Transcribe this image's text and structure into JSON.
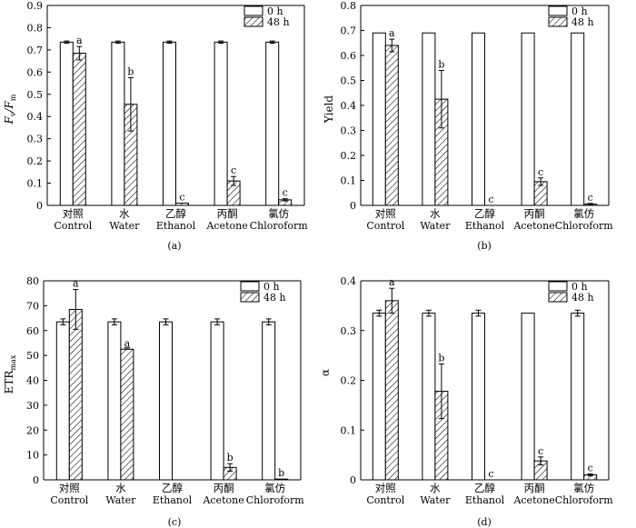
{
  "legend": {
    "series_labels": [
      "0 h",
      "48 h"
    ]
  },
  "chart_data": [
    {
      "type": "bar",
      "panel_label": "(a)",
      "ylabel": "Fv/Fm",
      "ylabel_main": "F",
      "ylabel_sub1": "v",
      "ylabel_sep": "/F",
      "ylabel_sub2": "m",
      "ylim": [
        0,
        0.9
      ],
      "yticks": [
        0,
        0.1,
        0.2,
        0.3,
        0.4,
        0.5,
        0.6,
        0.7,
        0.8,
        0.9
      ],
      "ytick_labels": [
        "0",
        "0.1",
        "0.2",
        "0.3",
        "0.4",
        "0.5",
        "0.6",
        "0.7",
        "0.8",
        "0.9"
      ],
      "categories": [
        "对照 Control",
        "水 Water",
        "乙醇 Ethanol",
        "丙酮 Acetone",
        "氯仿 Chloroform"
      ],
      "category_cn": [
        "对照",
        "水",
        "乙醇",
        "丙酮",
        "氯仿"
      ],
      "category_en": [
        "Control",
        "Water",
        "Ethanol",
        "Acetone",
        "Chloroform"
      ],
      "series": [
        {
          "name": "0 h",
          "values": [
            0.735,
            0.735,
            0.735,
            0.735,
            0.735
          ],
          "errors": [
            0.005,
            0.005,
            0.005,
            0.005,
            0.005
          ],
          "letters": [
            "",
            "",
            "",
            "",
            ""
          ]
        },
        {
          "name": "48 h",
          "values": [
            0.685,
            0.455,
            0.01,
            0.11,
            0.025
          ],
          "errors": [
            0.03,
            0.12,
            0,
            0.02,
            0.005
          ],
          "letters": [
            "a",
            "b",
            "c",
            "c",
            "c"
          ]
        }
      ]
    },
    {
      "type": "bar",
      "panel_label": "(b)",
      "ylabel": "Yield",
      "ylim": [
        0,
        0.8
      ],
      "yticks": [
        0,
        0.1,
        0.2,
        0.3,
        0.4,
        0.5,
        0.6,
        0.7,
        0.8
      ],
      "ytick_labels": [
        "0",
        "0.1",
        "0.2",
        "0.3",
        "0.4",
        "0.5",
        "0.6",
        "0.7",
        "0.8"
      ],
      "categories": [
        "对照 Control",
        "水 Water",
        "乙醇 Ethanol",
        "丙酮 Acetone",
        "氯仿 Chloroform"
      ],
      "category_cn": [
        "对照",
        "水",
        "乙醇",
        "丙酮",
        "氯仿"
      ],
      "category_en": [
        "Control",
        "Water",
        "Ethanol",
        "Acetone",
        "Chloroform"
      ],
      "series": [
        {
          "name": "0 h",
          "values": [
            0.69,
            0.69,
            0.69,
            0.69,
            0.69
          ],
          "errors": [
            0,
            0,
            0,
            0,
            0
          ],
          "letters": [
            "",
            "",
            "",
            "",
            ""
          ]
        },
        {
          "name": "48 h",
          "values": [
            0.64,
            0.425,
            0,
            0.095,
            0.005
          ],
          "errors": [
            0.025,
            0.115,
            0,
            0.015,
            0.003
          ],
          "letters": [
            "a",
            "b",
            "c",
            "c",
            "c"
          ]
        }
      ]
    },
    {
      "type": "bar",
      "panel_label": "(c)",
      "ylabel": "ETRmax",
      "ylabel_main": "ETR",
      "ylabel_sub1": "max",
      "ylim": [
        0,
        80
      ],
      "yticks": [
        0,
        10,
        20,
        30,
        40,
        50,
        60,
        70,
        80
      ],
      "ytick_labels": [
        "0",
        "10",
        "20",
        "30",
        "40",
        "50",
        "60",
        "70",
        "80"
      ],
      "categories": [
        "对照 Control",
        "水 Water",
        "乙醇 Ethanol",
        "丙酮 Acetone",
        "氯仿 Chloroform"
      ],
      "category_cn": [
        "对照",
        "水",
        "乙醇",
        "丙酮",
        "氯仿"
      ],
      "category_en": [
        "Control",
        "Water",
        "Ethanol",
        "Acetone",
        "Chloroform"
      ],
      "series": [
        {
          "name": "0 h",
          "values": [
            63.5,
            63.5,
            63.5,
            63.5,
            63.5
          ],
          "errors": [
            1.2,
            1.2,
            1.2,
            1.2,
            1.2
          ],
          "letters": [
            "",
            "",
            "",
            "",
            ""
          ]
        },
        {
          "name": "48 h",
          "values": [
            68.5,
            52.5,
            0,
            5,
            0.3
          ],
          "errors": [
            8,
            0,
            0,
            1.5,
            0
          ],
          "letters": [
            "a",
            "a",
            "",
            "b",
            "b"
          ]
        }
      ]
    },
    {
      "type": "bar",
      "panel_label": "(d)",
      "ylabel": "α",
      "ylim": [
        0,
        0.4
      ],
      "yticks": [
        0,
        0.1,
        0.2,
        0.3,
        0.4
      ],
      "ytick_labels": [
        "0",
        "0.1",
        "0.2",
        "0.3",
        "0.4"
      ],
      "categories": [
        "对照 Control",
        "水 Water",
        "乙醇 Ethanol",
        "丙酮 Acetone",
        "氯仿 Chloroform"
      ],
      "category_cn": [
        "对照",
        "水",
        "乙醇",
        "丙酮",
        "氯仿"
      ],
      "category_en": [
        "Control",
        "Water",
        "Ethanol",
        "Acetone",
        "Chloroform"
      ],
      "series": [
        {
          "name": "0 h",
          "values": [
            0.335,
            0.335,
            0.335,
            0.335,
            0.335
          ],
          "errors": [
            0.006,
            0.006,
            0.006,
            0,
            0.006
          ],
          "letters": [
            "",
            "",
            "",
            "",
            ""
          ]
        },
        {
          "name": "48 h",
          "values": [
            0.36,
            0.178,
            0,
            0.038,
            0.01
          ],
          "errors": [
            0.025,
            0.055,
            0,
            0.008,
            0.002
          ],
          "letters": [
            "a",
            "b",
            "c",
            "c",
            "c"
          ]
        }
      ]
    }
  ]
}
